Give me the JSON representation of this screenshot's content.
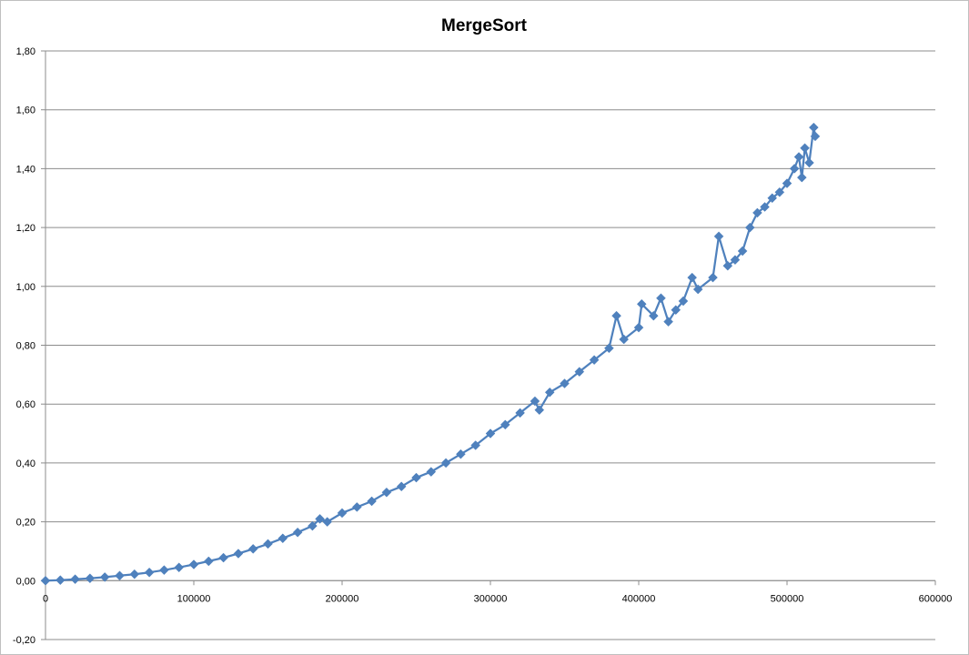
{
  "chart_data": {
    "type": "line",
    "title": "MergeSort",
    "xlabel": "",
    "ylabel": "",
    "xlim": [
      0,
      600000
    ],
    "ylim": [
      -0.2,
      1.8
    ],
    "x_ticks": [
      0,
      100000,
      200000,
      300000,
      400000,
      500000,
      600000
    ],
    "x_tick_labels": [
      "0",
      "100000",
      "200000",
      "300000",
      "400000",
      "500000",
      "600000"
    ],
    "y_ticks": [
      -0.2,
      0,
      0.2,
      0.4,
      0.6,
      0.8,
      1.0,
      1.2,
      1.4,
      1.6,
      1.8
    ],
    "y_tick_labels": [
      "-0,20",
      "0,00",
      "0,20",
      "0,40",
      "0,60",
      "0,80",
      "1,00",
      "1,20",
      "1,40",
      "1,60",
      "1,80"
    ],
    "grid": "horizontal",
    "legend": "none",
    "marker": "diamond",
    "color": "#4f81bd",
    "series": [
      {
        "x": [
          0,
          10000,
          20000,
          30000,
          40000,
          50000,
          60000,
          70000,
          80000,
          90000,
          100000,
          110000,
          120000,
          130000,
          140000,
          150000,
          160000,
          170000,
          180000,
          185000,
          190000,
          200000,
          210000,
          220000,
          230000,
          240000,
          250000,
          260000,
          270000,
          280000,
          290000,
          300000,
          310000,
          320000,
          330000,
          333000,
          340000,
          350000,
          360000,
          370000,
          380000,
          385000,
          390000,
          400000,
          402000,
          410000,
          415000,
          420000,
          425000,
          430000,
          436000,
          440000,
          450000,
          454000,
          460000,
          465000,
          470000,
          475000,
          480000,
          485000,
          490000,
          495000,
          500000,
          505000,
          508000,
          510000,
          512000,
          515000,
          518000,
          519000
        ],
        "y": [
          0.0,
          0.002,
          0.005,
          0.008,
          0.012,
          0.017,
          0.022,
          0.028,
          0.036,
          0.045,
          0.055,
          0.066,
          0.078,
          0.092,
          0.108,
          0.125,
          0.144,
          0.164,
          0.186,
          0.21,
          0.2,
          0.23,
          0.25,
          0.27,
          0.3,
          0.32,
          0.35,
          0.37,
          0.4,
          0.43,
          0.46,
          0.5,
          0.53,
          0.57,
          0.61,
          0.58,
          0.64,
          0.67,
          0.71,
          0.75,
          0.79,
          0.9,
          0.82,
          0.86,
          0.94,
          0.9,
          0.96,
          0.88,
          0.92,
          0.95,
          1.03,
          0.99,
          1.03,
          1.17,
          1.07,
          1.09,
          1.12,
          1.2,
          1.25,
          1.27,
          1.3,
          1.32,
          1.35,
          1.4,
          1.44,
          1.37,
          1.47,
          1.42,
          1.54,
          1.51
        ]
      }
    ]
  }
}
